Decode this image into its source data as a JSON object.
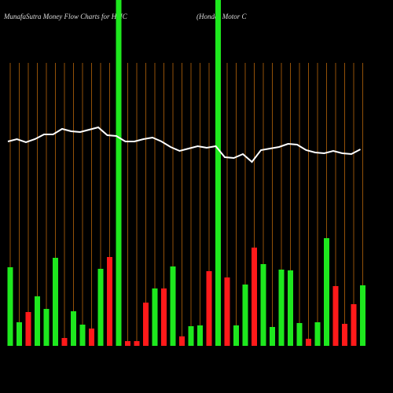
{
  "chart_data": {
    "type": "bar",
    "title": "MunafaSutra  Money Flow  Charts for HMC",
    "subtitle": "(Honda) Motor C",
    "values": [
      100,
      30,
      43,
      63,
      47,
      112,
      10,
      44,
      27,
      22,
      98,
      113,
      440,
      6,
      6,
      55,
      73,
      73,
      101,
      12,
      25,
      26,
      95,
      440,
      87,
      26,
      78,
      125,
      104,
      24,
      97,
      96,
      29,
      9,
      30,
      137,
      76,
      28,
      53,
      77
    ],
    "colors": [
      "#1ee81e",
      "#1ee81e",
      "#ff1a1a",
      "#1ee81e",
      "#1ee81e",
      "#1ee81e",
      "#ff1a1a",
      "#1ee81e",
      "#1ee81e",
      "#ff1a1a",
      "#1ee81e",
      "#ff1a1a",
      "#1ee81e",
      "#ff1a1a",
      "#ff1a1a",
      "#ff1a1a",
      "#1ee81e",
      "#ff1a1a",
      "#1ee81e",
      "#ff1a1a",
      "#1ee81e",
      "#1ee81e",
      "#ff1a1a",
      "#1ee81e",
      "#ff1a1a",
      "#1ee81e",
      "#1ee81e",
      "#ff1a1a",
      "#1ee81e",
      "#1ee81e",
      "#1ee81e",
      "#1ee81e",
      "#1ee81e",
      "#ff1a1a",
      "#1ee81e",
      "#1ee81e",
      "#ff1a1a",
      "#ff1a1a",
      "#ff1a1a",
      "#1ee81e"
    ],
    "line_values": [
      260,
      263,
      259,
      263,
      269,
      269,
      276,
      273,
      272,
      275,
      278,
      268,
      267,
      260,
      260,
      263,
      265,
      260,
      253,
      248,
      251,
      254,
      252,
      254,
      240,
      239,
      244,
      234,
      249,
      251,
      253,
      257,
      256,
      249,
      246,
      245,
      248,
      245,
      244,
      250
    ],
    "line_color": "#ffffff",
    "grid_color": "#b8660b",
    "ylim": [
      0,
      440
    ]
  }
}
